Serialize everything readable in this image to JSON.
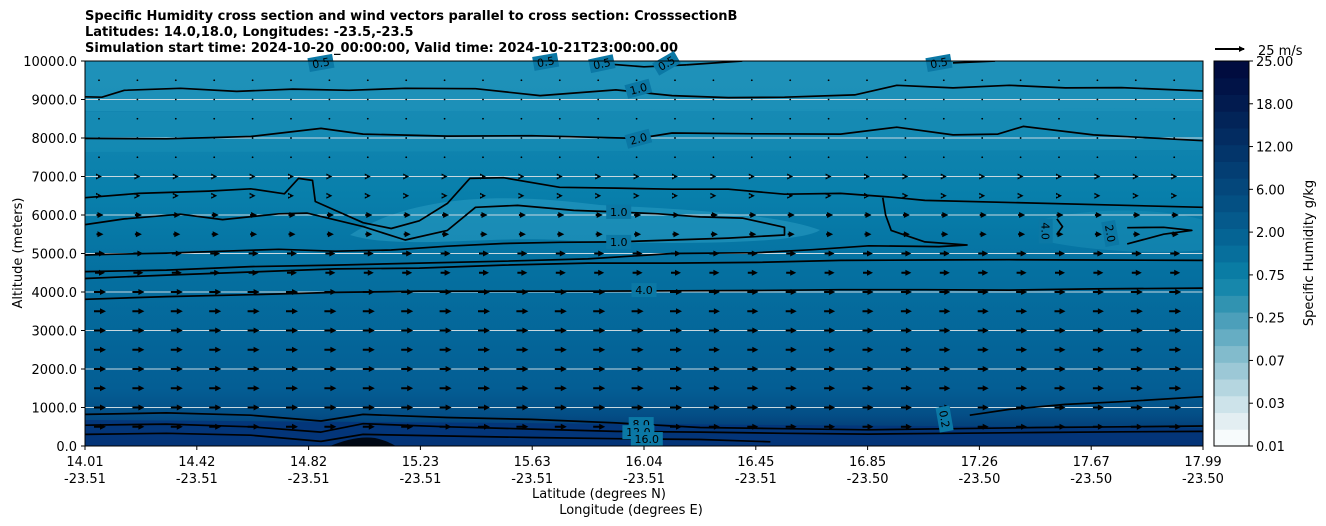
{
  "chart_data": {
    "type": "filled-contour",
    "title_lines": [
      "Specific Humidity cross section and wind vectors parallel to cross section: CrosssectionB",
      "Latitudes: 14.0,18.0, Longitudes: -23.5,-23.5",
      "Simulation start time: 2024-10-20_00:00:00, Valid time: 2024-10-21T23:00:00.00"
    ],
    "ylabel": "Altitude (meters)",
    "xlabel_lat": "Latitude (degrees N)",
    "xlabel_lon": "Longitude (degrees E)",
    "ylim": [
      0,
      10000
    ],
    "y_ticks": [
      "0.0",
      "1000.0",
      "2000.0",
      "3000.0",
      "4000.0",
      "5000.0",
      "6000.0",
      "7000.0",
      "8000.0",
      "9000.0",
      "10000.0"
    ],
    "x_ticks_lat": [
      "14.01",
      "14.42",
      "14.82",
      "15.23",
      "15.63",
      "16.04",
      "16.45",
      "16.85",
      "17.26",
      "17.67",
      "17.99"
    ],
    "x_ticks_lon": [
      "-23.51",
      "-23.51",
      "-23.51",
      "-23.51",
      "-23.51",
      "-23.51",
      "-23.51",
      "-23.50",
      "-23.50",
      "-23.50",
      "-23.50"
    ],
    "colorbar": {
      "label": "Specific Humidity g/kg",
      "tick_labels": [
        "0.01",
        "0.03",
        "0.07",
        "0.25",
        "0.75",
        "2.00",
        "6.00",
        "12.00",
        "18.00",
        "25.00"
      ]
    },
    "quiver_key": "25 m/s",
    "contour_labels": [
      {
        "text": "0.5",
        "x": 14.85,
        "y": 9950,
        "rot": -10
      },
      {
        "text": "0.5",
        "x": 15.65,
        "y": 9980,
        "rot": -10
      },
      {
        "text": "0.5",
        "x": 15.85,
        "y": 9930,
        "rot": -12
      },
      {
        "text": "0.5",
        "x": 16.08,
        "y": 9940,
        "rot": -30
      },
      {
        "text": "0.5",
        "x": 17.05,
        "y": 9950,
        "rot": -10
      },
      {
        "text": "1.0",
        "x": 15.98,
        "y": 9280,
        "rot": -15
      },
      {
        "text": "2.0",
        "x": 15.98,
        "y": 7980,
        "rot": -15
      },
      {
        "text": "1.0",
        "x": 15.91,
        "y": 6080,
        "rot": 0
      },
      {
        "text": "1.0",
        "x": 15.91,
        "y": 5300,
        "rot": 0
      },
      {
        "text": "4.0",
        "x": 16.0,
        "y": 4050,
        "rot": 0
      },
      {
        "text": "4.0",
        "x": 17.43,
        "y": 5580,
        "rot": 90
      },
      {
        "text": "2.0",
        "x": 17.66,
        "y": 5520,
        "rot": 80
      },
      {
        "text": "8.0",
        "x": 15.99,
        "y": 570,
        "rot": 0
      },
      {
        "text": "12.0",
        "x": 15.98,
        "y": 360,
        "rot": 0
      },
      {
        "text": "16.0",
        "x": 16.01,
        "y": 180,
        "rot": 0
      },
      {
        "text": "0.2",
        "x": 17.07,
        "y": 700,
        "rot": 80
      }
    ],
    "contours": [
      {
        "level": "0.5",
        "points": [
          [
            16.15,
            9900
          ],
          [
            16.35,
            10000
          ]
        ]
      },
      {
        "level": "0.5",
        "points": [
          [
            15.82,
            9950
          ],
          [
            16.0,
            9850
          ],
          [
            16.15,
            9900
          ]
        ]
      },
      {
        "level": "0.5",
        "points": [
          [
            17.1,
            9950
          ],
          [
            17.25,
            10000
          ]
        ]
      },
      {
        "level": "1.0",
        "points": [
          [
            14.01,
            9070
          ],
          [
            14.07,
            9060
          ],
          [
            14.15,
            9240
          ],
          [
            14.35,
            9290
          ],
          [
            14.55,
            9210
          ],
          [
            14.75,
            9270
          ],
          [
            14.95,
            9240
          ],
          [
            15.15,
            9290
          ],
          [
            15.4,
            9280
          ],
          [
            15.63,
            9100
          ],
          [
            15.9,
            9250
          ],
          [
            16.1,
            9100
          ],
          [
            16.3,
            9050
          ],
          [
            16.5,
            9060
          ],
          [
            16.75,
            9120
          ],
          [
            16.9,
            9370
          ],
          [
            17.1,
            9300
          ],
          [
            17.3,
            9370
          ],
          [
            17.5,
            9300
          ],
          [
            17.7,
            9310
          ],
          [
            17.99,
            9220
          ]
        ]
      },
      {
        "level": "2.0",
        "points": [
          [
            14.01,
            7990
          ],
          [
            14.3,
            7980
          ],
          [
            14.6,
            8040
          ],
          [
            14.85,
            8250
          ],
          [
            15.0,
            8100
          ],
          [
            15.3,
            8050
          ],
          [
            15.6,
            8060
          ],
          [
            15.98,
            7990
          ],
          [
            16.1,
            8130
          ],
          [
            16.4,
            8110
          ],
          [
            16.7,
            8100
          ],
          [
            16.9,
            8280
          ],
          [
            17.1,
            8080
          ],
          [
            17.26,
            8100
          ],
          [
            17.35,
            8300
          ],
          [
            17.6,
            8080
          ],
          [
            17.99,
            7930
          ]
        ]
      },
      {
        "level": "1.0",
        "points": [
          [
            14.01,
            6450
          ],
          [
            14.2,
            6560
          ],
          [
            14.45,
            6620
          ],
          [
            14.6,
            6680
          ],
          [
            14.72,
            6550
          ],
          [
            14.77,
            6950
          ],
          [
            14.82,
            6900
          ],
          [
            14.83,
            6350
          ],
          [
            15.0,
            5800
          ],
          [
            15.1,
            5650
          ],
          [
            15.2,
            5850
          ],
          [
            15.3,
            6300
          ],
          [
            15.38,
            6950
          ],
          [
            15.5,
            6970
          ],
          [
            15.7,
            6720
          ],
          [
            15.9,
            6700
          ],
          [
            16.1,
            6670
          ],
          [
            16.3,
            6670
          ],
          [
            16.5,
            6540
          ],
          [
            16.7,
            6560
          ],
          [
            16.87,
            6470
          ],
          [
            17.0,
            6380
          ],
          [
            17.99,
            6200
          ]
        ]
      },
      {
        "level": "1.0",
        "points": [
          [
            14.01,
            5750
          ],
          [
            14.15,
            5900
          ],
          [
            14.35,
            6020
          ],
          [
            14.5,
            5880
          ],
          [
            14.7,
            6030
          ],
          [
            14.8,
            6050
          ],
          [
            15.0,
            5700
          ],
          [
            15.15,
            5350
          ],
          [
            15.3,
            5600
          ],
          [
            15.4,
            6200
          ],
          [
            15.55,
            6250
          ],
          [
            15.75,
            6120
          ],
          [
            15.9,
            6080
          ],
          [
            16.05,
            6030
          ],
          [
            16.2,
            5950
          ],
          [
            16.35,
            5920
          ],
          [
            16.5,
            5680
          ],
          [
            16.5,
            5480
          ],
          [
            16.3,
            5400
          ],
          [
            16.1,
            5350
          ],
          [
            15.9,
            5300
          ],
          [
            15.7,
            5290
          ],
          [
            15.5,
            5260
          ],
          [
            15.3,
            5190
          ],
          [
            15.1,
            5090
          ],
          [
            14.9,
            5060
          ],
          [
            14.7,
            5110
          ],
          [
            14.5,
            5060
          ],
          [
            14.3,
            5010
          ],
          [
            14.1,
            4980
          ],
          [
            14.01,
            4960
          ]
        ]
      },
      {
        "level": "1.0",
        "points": [
          [
            16.85,
            6450
          ],
          [
            16.86,
            6000
          ],
          [
            16.88,
            5600
          ],
          [
            17.0,
            5300
          ],
          [
            17.15,
            5220
          ],
          [
            17.05,
            5180
          ],
          [
            16.8,
            5200
          ],
          [
            16.6,
            5100
          ],
          [
            16.4,
            5020
          ],
          [
            16.1,
            5000
          ],
          [
            15.8,
            4860
          ],
          [
            15.5,
            4800
          ],
          [
            15.2,
            4750
          ],
          [
            14.9,
            4700
          ],
          [
            14.6,
            4660
          ],
          [
            14.3,
            4570
          ],
          [
            14.01,
            4530
          ]
        ]
      },
      {
        "level": "2.0",
        "points": [
          [
            17.72,
            5250
          ],
          [
            17.85,
            5500
          ],
          [
            17.95,
            5600
          ],
          [
            17.85,
            5680
          ],
          [
            17.72,
            5670
          ]
        ]
      },
      {
        "level": "4.0",
        "points": [
          [
            17.47,
            5900
          ],
          [
            17.49,
            5700
          ],
          [
            17.47,
            5500
          ]
        ]
      },
      {
        "level": "4.0",
        "points": [
          [
            14.01,
            4350
          ],
          [
            14.3,
            4440
          ],
          [
            14.6,
            4520
          ],
          [
            14.9,
            4600
          ],
          [
            15.2,
            4620
          ],
          [
            15.5,
            4700
          ],
          [
            15.8,
            4750
          ],
          [
            16.1,
            4750
          ],
          [
            16.4,
            4770
          ],
          [
            16.7,
            4820
          ],
          [
            17.0,
            4830
          ],
          [
            17.3,
            4840
          ],
          [
            17.6,
            4830
          ],
          [
            17.99,
            4820
          ]
        ]
      },
      {
        "level": "4.0",
        "points": [
          [
            14.01,
            3810
          ],
          [
            14.3,
            3880
          ],
          [
            14.6,
            3930
          ],
          [
            14.9,
            3990
          ],
          [
            15.2,
            4020
          ],
          [
            15.5,
            4020
          ],
          [
            15.8,
            4020
          ],
          [
            16.1,
            4030
          ],
          [
            16.4,
            4040
          ],
          [
            16.7,
            4060
          ],
          [
            17.0,
            4060
          ],
          [
            17.3,
            4050
          ],
          [
            17.6,
            4080
          ],
          [
            17.99,
            4100
          ]
        ]
      },
      {
        "level": "0.2",
        "points": [
          [
            17.16,
            800
          ],
          [
            17.3,
            950
          ],
          [
            17.5,
            1080
          ],
          [
            17.7,
            1150
          ],
          [
            17.99,
            1280
          ]
        ]
      },
      {
        "level": "8.0",
        "points": [
          [
            14.01,
            820
          ],
          [
            14.3,
            860
          ],
          [
            14.6,
            800
          ],
          [
            14.85,
            650
          ],
          [
            15.0,
            820
          ],
          [
            15.3,
            740
          ],
          [
            15.6,
            690
          ],
          [
            15.9,
            600
          ],
          [
            16.2,
            480
          ],
          [
            16.5,
            450
          ],
          [
            16.8,
            420
          ],
          [
            17.1,
            450
          ],
          [
            17.4,
            480
          ],
          [
            17.7,
            500
          ],
          [
            17.99,
            520
          ]
        ]
      },
      {
        "level": "12.0",
        "points": [
          [
            14.01,
            540
          ],
          [
            14.3,
            570
          ],
          [
            14.6,
            500
          ],
          [
            14.85,
            360
          ],
          [
            15.0,
            580
          ],
          [
            15.3,
            500
          ],
          [
            15.6,
            440
          ],
          [
            15.9,
            380
          ],
          [
            16.2,
            360
          ],
          [
            16.5,
            330
          ],
          [
            16.8,
            310
          ],
          [
            17.1,
            330
          ],
          [
            17.4,
            350
          ],
          [
            17.7,
            370
          ],
          [
            17.99,
            380
          ]
        ]
      },
      {
        "level": "16.0",
        "points": [
          [
            14.01,
            300
          ],
          [
            14.3,
            330
          ],
          [
            14.6,
            280
          ],
          [
            14.85,
            120
          ],
          [
            15.0,
            300
          ],
          [
            15.3,
            260
          ],
          [
            15.6,
            220
          ],
          [
            15.9,
            190
          ],
          [
            16.2,
            170
          ],
          [
            16.45,
            110
          ]
        ]
      }
    ]
  }
}
